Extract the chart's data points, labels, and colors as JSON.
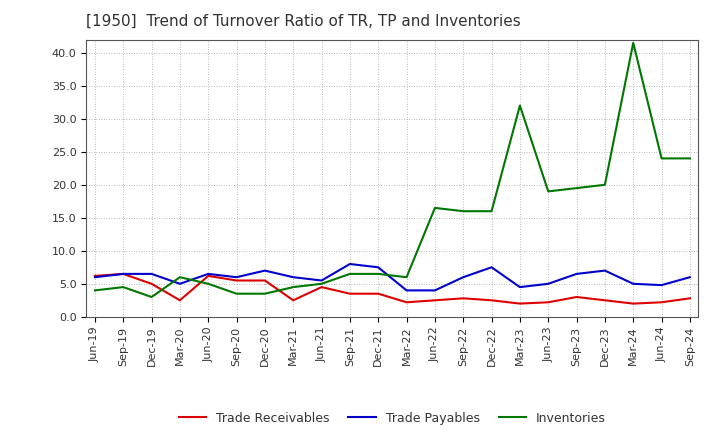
{
  "title": "[1950]  Trend of Turnover Ratio of TR, TP and Inventories",
  "x_labels": [
    "Jun-19",
    "Sep-19",
    "Dec-19",
    "Mar-20",
    "Jun-20",
    "Sep-20",
    "Dec-20",
    "Mar-21",
    "Jun-21",
    "Sep-21",
    "Dec-21",
    "Mar-22",
    "Jun-22",
    "Sep-22",
    "Dec-22",
    "Mar-23",
    "Jun-23",
    "Sep-23",
    "Dec-23",
    "Mar-24",
    "Jun-24",
    "Sep-24"
  ],
  "trade_receivables": [
    6.2,
    6.5,
    5.0,
    2.5,
    6.2,
    5.5,
    5.5,
    2.5,
    4.5,
    3.5,
    3.5,
    2.2,
    2.5,
    2.8,
    2.5,
    2.0,
    2.2,
    3.0,
    2.5,
    2.0,
    2.2,
    2.8
  ],
  "trade_payables": [
    6.0,
    6.5,
    6.5,
    5.0,
    6.5,
    6.0,
    7.0,
    6.0,
    5.5,
    8.0,
    7.5,
    4.0,
    4.0,
    6.0,
    7.5,
    4.5,
    5.0,
    6.5,
    7.0,
    5.0,
    4.8,
    6.0
  ],
  "inventories": [
    4.0,
    4.5,
    3.0,
    6.0,
    5.0,
    3.5,
    3.5,
    4.5,
    5.0,
    6.5,
    6.5,
    6.0,
    16.5,
    16.0,
    16.0,
    32.0,
    19.0,
    19.5,
    20.0,
    41.5,
    24.0,
    24.0
  ],
  "tr_color": "#dd0000",
  "tp_color": "#0000cc",
  "inv_color": "#007700",
  "ylim": [
    0.0,
    42.0
  ],
  "yticks": [
    0.0,
    5.0,
    10.0,
    15.0,
    20.0,
    25.0,
    30.0,
    35.0,
    40.0
  ],
  "legend_labels": [
    "Trade Receivables",
    "Trade Payables",
    "Inventories"
  ],
  "background_color": "#ffffff",
  "grid_color": "#999999",
  "title_color": "#333333",
  "title_fontsize": 11,
  "tick_fontsize": 8,
  "legend_fontsize": 9,
  "line_width": 1.5
}
